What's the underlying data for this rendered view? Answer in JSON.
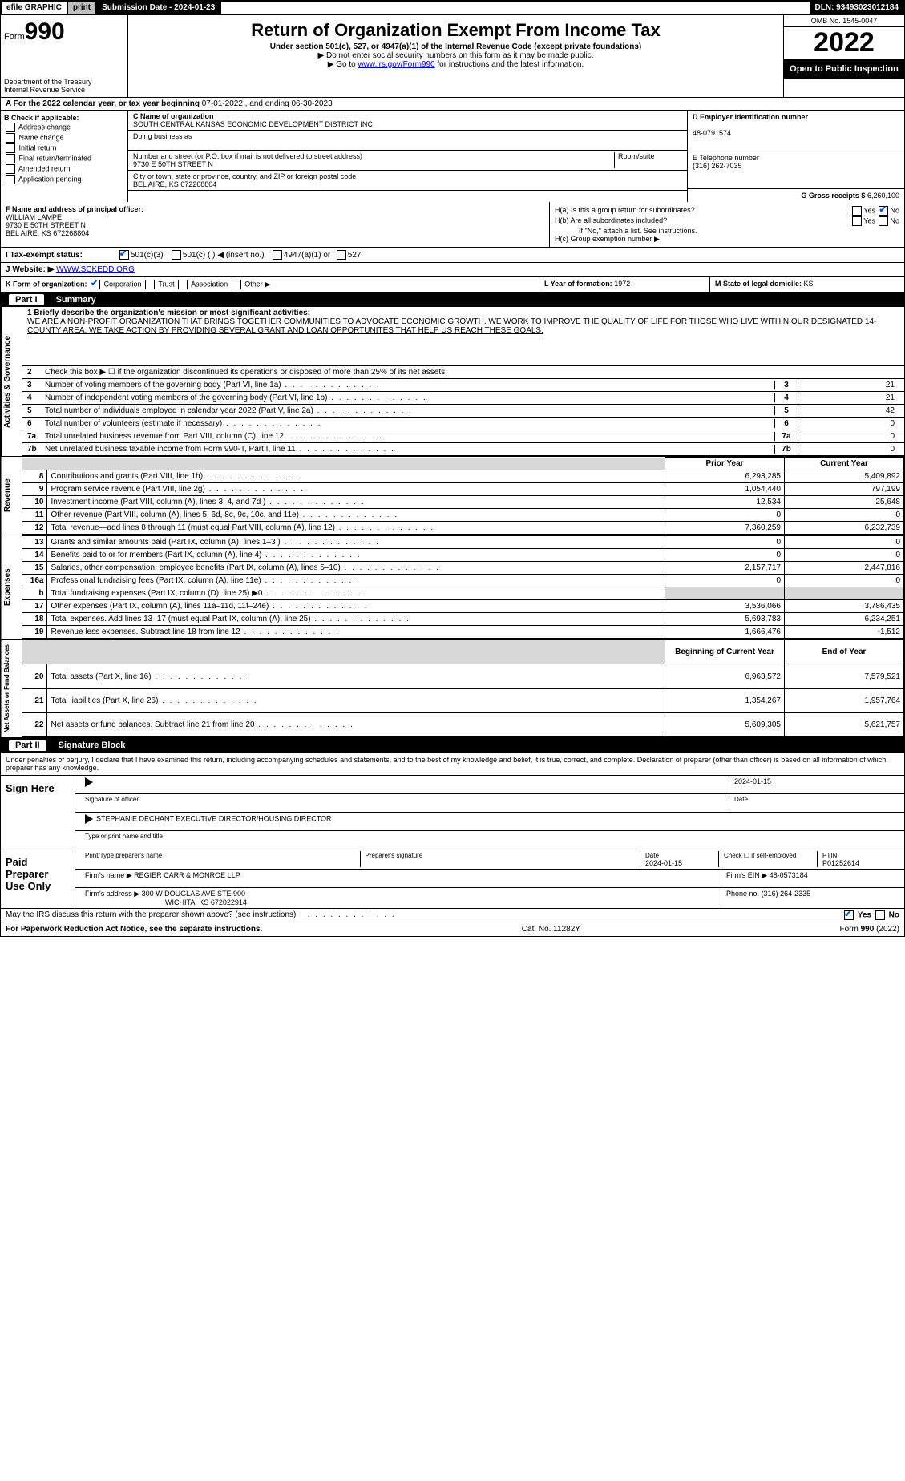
{
  "topbar": {
    "efile": "efile GRAPHIC",
    "print": "print",
    "subdate": "Submission Date - 2024-01-23",
    "dln": "DLN: 93493023012184"
  },
  "header": {
    "form_label": "Form",
    "form_no": "990",
    "dept": "Department of the Treasury",
    "irs": "Internal Revenue Service",
    "title": "Return of Organization Exempt From Income Tax",
    "sub1": "Under section 501(c), 527, or 4947(a)(1) of the Internal Revenue Code (except private foundations)",
    "sub2": "▶ Do not enter social security numbers on this form as it may be made public.",
    "sub3_pre": "▶ Go to ",
    "sub3_link": "www.irs.gov/Form990",
    "sub3_post": " for instructions and the latest information.",
    "omb": "OMB No. 1545-0047",
    "year": "2022",
    "open": "Open to Public Inspection"
  },
  "row_a": {
    "label": "A For the 2022 calendar year, or tax year beginning ",
    "begin": "07-01-2022",
    "mid": " , and ending ",
    "end": "06-30-2023"
  },
  "col_b": {
    "title": "B Check if applicable:",
    "items": [
      "Address change",
      "Name change",
      "Initial return",
      "Final return/terminated",
      "Amended return",
      "Application pending"
    ]
  },
  "col_c": {
    "name_lbl": "C Name of organization",
    "name": "SOUTH CENTRAL KANSAS ECONOMIC DEVELOPMENT DISTRICT INC",
    "dba_lbl": "Doing business as",
    "dba": "",
    "addr_lbl": "Number and street (or P.O. box if mail is not delivered to street address)",
    "room_lbl": "Room/suite",
    "addr": "9730 E 50TH STREET N",
    "city_lbl": "City or town, state or province, country, and ZIP or foreign postal code",
    "city": "BEL AIRE, KS  672268804"
  },
  "col_d": {
    "ein_lbl": "D Employer identification number",
    "ein": "48-0791574",
    "tel_lbl": "E Telephone number",
    "tel": "(316) 262-7035",
    "gross_lbl": "G Gross receipts $",
    "gross": "6,260,100"
  },
  "row_f": {
    "lbl": "F Name and address of principal officer:",
    "name": "WILLIAM LAMPE",
    "addr1": "9730 E 50TH STREET N",
    "addr2": "BEL AIRE, KS  672268804"
  },
  "row_h": {
    "ha_lbl": "H(a)  Is this a group return for subordinates?",
    "yes": "Yes",
    "no": "No",
    "hb_lbl": "H(b)  Are all subordinates included?",
    "hb_note": "If \"No,\" attach a list. See instructions.",
    "hc_lbl": "H(c)  Group exemption number ▶"
  },
  "row_i": {
    "lbl": "I   Tax-exempt status:",
    "o1": "501(c)(3)",
    "o2": "501(c) (   ) ◀ (insert no.)",
    "o3": "4947(a)(1) or",
    "o4": "527"
  },
  "row_j": {
    "lbl": "J   Website: ▶",
    "val": "WWW.SCKEDD.ORG"
  },
  "row_k": {
    "lbl": "K Form of organization:",
    "o1": "Corporation",
    "o2": "Trust",
    "o3": "Association",
    "o4": "Other ▶"
  },
  "row_l": {
    "lbl": "L Year of formation:",
    "val": "1972"
  },
  "row_m": {
    "lbl": "M State of legal domicile:",
    "val": "KS"
  },
  "part1": {
    "num": "Part I",
    "title": "Summary"
  },
  "mission": {
    "lbl": "1  Briefly describe the organization's mission or most significant activities:",
    "text": "WE ARE A NON-PROFIT ORGANIZATION THAT BRINGS TOGETHER COMMUNITIES TO ADVOCATE ECONOMIC GROWTH. WE WORK TO IMPROVE THE QUALITY OF LIFE FOR THOSE WHO LIVE WITHIN OUR DESIGNATED 14-COUNTY AREA. WE TAKE ACTION BY PROVIDING SEVERAL GRANT AND LOAN OPPORTUNITES THAT HELP US REACH THESE GOALS."
  },
  "gov": {
    "label": "Activities & Governance",
    "l2": "Check this box ▶ ☐  if the organization discontinued its operations or disposed of more than 25% of its net assets.",
    "rows": [
      {
        "n": "3",
        "t": "Number of voting members of the governing body (Part VI, line 1a)",
        "box": "3",
        "v": "21"
      },
      {
        "n": "4",
        "t": "Number of independent voting members of the governing body (Part VI, line 1b)",
        "box": "4",
        "v": "21"
      },
      {
        "n": "5",
        "t": "Total number of individuals employed in calendar year 2022 (Part V, line 2a)",
        "box": "5",
        "v": "42"
      },
      {
        "n": "6",
        "t": "Total number of volunteers (estimate if necessary)",
        "box": "6",
        "v": "0"
      },
      {
        "n": "7a",
        "t": "Total unrelated business revenue from Part VIII, column (C), line 12",
        "box": "7a",
        "v": "0"
      },
      {
        "n": "7b",
        "t": "Net unrelated business taxable income from Form 990-T, Part I, line 11",
        "box": "7b",
        "v": "0"
      }
    ]
  },
  "fin_hdr": {
    "prior": "Prior Year",
    "current": "Current Year"
  },
  "revenue": {
    "label": "Revenue",
    "rows": [
      {
        "n": "8",
        "t": "Contributions and grants (Part VIII, line 1h)",
        "p": "6,293,285",
        "c": "5,409,892"
      },
      {
        "n": "9",
        "t": "Program service revenue (Part VIII, line 2g)",
        "p": "1,054,440",
        "c": "797,199"
      },
      {
        "n": "10",
        "t": "Investment income (Part VIII, column (A), lines 3, 4, and 7d )",
        "p": "12,534",
        "c": "25,648"
      },
      {
        "n": "11",
        "t": "Other revenue (Part VIII, column (A), lines 5, 6d, 8c, 9c, 10c, and 11e)",
        "p": "0",
        "c": "0"
      },
      {
        "n": "12",
        "t": "Total revenue—add lines 8 through 11 (must equal Part VIII, column (A), line 12)",
        "p": "7,360,259",
        "c": "6,232,739"
      }
    ]
  },
  "expenses": {
    "label": "Expenses",
    "rows": [
      {
        "n": "13",
        "t": "Grants and similar amounts paid (Part IX, column (A), lines 1–3 )",
        "p": "0",
        "c": "0"
      },
      {
        "n": "14",
        "t": "Benefits paid to or for members (Part IX, column (A), line 4)",
        "p": "0",
        "c": "0"
      },
      {
        "n": "15",
        "t": "Salaries, other compensation, employee benefits (Part IX, column (A), lines 5–10)",
        "p": "2,157,717",
        "c": "2,447,816"
      },
      {
        "n": "16a",
        "t": "Professional fundraising fees (Part IX, column (A), line 11e)",
        "p": "0",
        "c": "0"
      },
      {
        "n": "b",
        "t": "Total fundraising expenses (Part IX, column (D), line 25) ▶0",
        "p": "",
        "c": "",
        "shade": true
      },
      {
        "n": "17",
        "t": "Other expenses (Part IX, column (A), lines 11a–11d, 11f–24e)",
        "p": "3,536,066",
        "c": "3,786,435"
      },
      {
        "n": "18",
        "t": "Total expenses. Add lines 13–17 (must equal Part IX, column (A), line 25)",
        "p": "5,693,783",
        "c": "6,234,251"
      },
      {
        "n": "19",
        "t": "Revenue less expenses. Subtract line 18 from line 12",
        "p": "1,666,476",
        "c": "-1,512"
      }
    ]
  },
  "netassets": {
    "label": "Net Assets or Fund Balances",
    "hdr_p": "Beginning of Current Year",
    "hdr_c": "End of Year",
    "rows": [
      {
        "n": "20",
        "t": "Total assets (Part X, line 16)",
        "p": "6,963,572",
        "c": "7,579,521"
      },
      {
        "n": "21",
        "t": "Total liabilities (Part X, line 26)",
        "p": "1,354,267",
        "c": "1,957,764"
      },
      {
        "n": "22",
        "t": "Net assets or fund balances. Subtract line 21 from line 20",
        "p": "5,609,305",
        "c": "5,621,757"
      }
    ]
  },
  "part2": {
    "num": "Part II",
    "title": "Signature Block"
  },
  "sig": {
    "decl": "Under penalties of perjury, I declare that I have examined this return, including accompanying schedules and statements, and to the best of my knowledge and belief, it is true, correct, and complete. Declaration of preparer (other than officer) is based on all information of which preparer has any knowledge.",
    "sign_here": "Sign Here",
    "sig_officer": "Signature of officer",
    "date_lbl": "Date",
    "date": "2024-01-15",
    "name_title": "STEPHANIE DECHANT  EXECUTIVE DIRECTOR/HOUSING DIRECTOR",
    "name_lbl": "Type or print name and title",
    "paid": "Paid Preparer Use Only",
    "p_name_lbl": "Print/Type preparer's name",
    "p_sig_lbl": "Preparer's signature",
    "p_date_lbl": "Date",
    "p_date": "2024-01-15",
    "p_self_lbl": "Check ☐ if self-employed",
    "ptin_lbl": "PTIN",
    "ptin": "P01252614",
    "firm_name_lbl": "Firm's name    ▶",
    "firm_name": "REGIER CARR & MONROE LLP",
    "firm_ein_lbl": "Firm's EIN ▶",
    "firm_ein": "48-0573184",
    "firm_addr_lbl": "Firm's address ▶",
    "firm_addr1": "300 W DOUGLAS AVE STE 900",
    "firm_addr2": "WICHITA, KS  672022914",
    "phone_lbl": "Phone no.",
    "phone": "(316) 264-2335",
    "discuss": "May the IRS discuss this return with the preparer shown above? (see instructions)"
  },
  "foot": {
    "left": "For Paperwork Reduction Act Notice, see the separate instructions.",
    "mid": "Cat. No. 11282Y",
    "right": "Form 990 (2022)"
  }
}
